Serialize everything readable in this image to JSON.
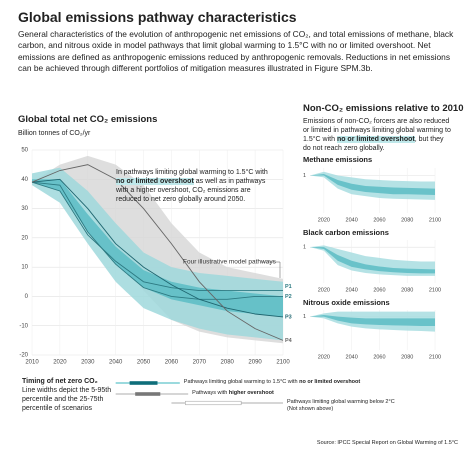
{
  "header": {
    "title": "Global emissions pathway characteristics",
    "paragraph": "General characteristics of the evolution of anthropogenic net emissions of CO₂, and total emissions of methane, black carbon, and nitrous oxide in model pathways that limit global warming to 1.5°C with no or limited overshoot. Net emissions are defined as anthropogenic emissions reduced by anthropogenic removals. Reductions in net emissions can be achieved through different portfolios of mitigation measures illustrated in Figure SPM.3b."
  },
  "chart_data": [
    {
      "type": "area-line",
      "title": "Global total net CO₂ emissions",
      "y_label": "Billion tonnes of CO₂/yr",
      "annotation": {
        "before": "In pathways limiting global warming to 1.5°C with",
        "highlight": "no or limited overshoot",
        "after": "as well as in pathways with a higher overshoot, CO₂ emissions are reduced to net zero globally around 2050."
      },
      "pathways_label": "Four illustrative model pathways",
      "x": [
        2010,
        2020,
        2030,
        2040,
        2050,
        2060,
        2070,
        2080,
        2090,
        2100
      ],
      "xlim": [
        2010,
        2100
      ],
      "xticks": [
        2010,
        2020,
        2030,
        2040,
        2050,
        2060,
        2070,
        2080,
        2090,
        2100
      ],
      "ylim": [
        -20,
        50
      ],
      "yticks": [
        -20,
        -10,
        0,
        10,
        20,
        30,
        40,
        50
      ],
      "grid": true,
      "bands": [
        {
          "color": "#d6d6d6",
          "low": [
            39,
            40,
            30,
            15,
            2,
            -8,
            -12,
            -14,
            -15,
            -16
          ],
          "high": [
            39,
            45,
            48,
            45,
            38,
            25,
            15,
            10,
            8,
            6
          ]
        },
        {
          "color": "#9fd8dc",
          "low": [
            38,
            32,
            18,
            5,
            -4,
            -8,
            -11,
            -13,
            -14,
            -15
          ],
          "high": [
            42,
            44,
            36,
            25,
            15,
            10,
            8,
            7,
            6,
            5
          ]
        },
        {
          "color": "#5bbcc4",
          "low": [
            39,
            36,
            22,
            11,
            3,
            -1,
            -3,
            -5,
            -6,
            -7
          ],
          "high": [
            40,
            40,
            28,
            17,
            9,
            5,
            3,
            2,
            1,
            0
          ]
        }
      ],
      "series": [
        {
          "name": "P1",
          "color": "#2d7a82",
          "values": [
            39,
            36,
            21,
            12,
            5,
            3,
            2,
            2,
            2,
            2
          ]
        },
        {
          "name": "P2",
          "color": "#2d7a82",
          "values": [
            39,
            38,
            22,
            11,
            3,
            0,
            -1,
            -1,
            0,
            0
          ]
        },
        {
          "name": "P3",
          "color": "#1f6670",
          "values": [
            39,
            40,
            30,
            18,
            10,
            4,
            -1,
            -4,
            -6,
            -7
          ]
        },
        {
          "name": "P4",
          "color": "#666666",
          "values": [
            39,
            43,
            45,
            40,
            30,
            18,
            5,
            -5,
            -11,
            -15
          ]
        }
      ]
    },
    {
      "type": "area",
      "title": "Methane emissions",
      "x": [
        2010,
        2020,
        2030,
        2040,
        2050,
        2060,
        2070,
        2080,
        2090,
        2100
      ],
      "xlim": [
        2010,
        2100
      ],
      "xticks": [
        2020,
        2040,
        2060,
        2080,
        2100
      ],
      "ylim": [
        0,
        1.2
      ],
      "yticks": [
        1
      ],
      "grid": true,
      "bands": [
        {
          "color": "#a8dde0",
          "low": [
            1,
            0.95,
            0.65,
            0.5,
            0.45,
            0.4,
            0.38,
            0.37,
            0.36,
            0.35
          ],
          "high": [
            1,
            1.1,
            1.0,
            0.95,
            0.9,
            0.88,
            0.86,
            0.85,
            0.84,
            0.84
          ]
        },
        {
          "color": "#5cbcc4",
          "low": [
            1,
            1.0,
            0.75,
            0.62,
            0.56,
            0.53,
            0.5,
            0.5,
            0.49,
            0.48
          ],
          "high": [
            1,
            1.04,
            0.88,
            0.78,
            0.72,
            0.7,
            0.68,
            0.67,
            0.66,
            0.65
          ]
        }
      ]
    },
    {
      "type": "area",
      "title": "Black carbon emissions",
      "x": [
        2010,
        2020,
        2030,
        2040,
        2050,
        2060,
        2070,
        2080,
        2090,
        2100
      ],
      "xlim": [
        2010,
        2100
      ],
      "xticks": [
        2020,
        2040,
        2060,
        2080,
        2100
      ],
      "ylim": [
        0,
        1.2
      ],
      "yticks": [
        1
      ],
      "grid": true,
      "bands": [
        {
          "color": "#a8dde0",
          "low": [
            1,
            0.9,
            0.5,
            0.35,
            0.28,
            0.24,
            0.22,
            0.2,
            0.2,
            0.2
          ],
          "high": [
            1,
            1.05,
            0.95,
            0.85,
            0.75,
            0.7,
            0.65,
            0.62,
            0.6,
            0.6
          ]
        },
        {
          "color": "#5cbcc4",
          "low": [
            1,
            0.95,
            0.62,
            0.45,
            0.38,
            0.33,
            0.3,
            0.28,
            0.27,
            0.27
          ],
          "high": [
            1,
            1.0,
            0.78,
            0.62,
            0.52,
            0.46,
            0.42,
            0.4,
            0.39,
            0.38
          ]
        }
      ]
    },
    {
      "type": "area",
      "title": "Nitrous oxide emissions",
      "x": [
        2010,
        2020,
        2030,
        2040,
        2050,
        2060,
        2070,
        2080,
        2090,
        2100
      ],
      "xlim": [
        2010,
        2100
      ],
      "xticks": [
        2020,
        2040,
        2060,
        2080,
        2100
      ],
      "ylim": [
        0,
        1.2
      ],
      "yticks": [
        1
      ],
      "grid": true,
      "bands": [
        {
          "color": "#a8dde0",
          "low": [
            1,
            0.95,
            0.8,
            0.7,
            0.65,
            0.62,
            0.6,
            0.58,
            0.57,
            0.55
          ],
          "high": [
            1,
            1.1,
            1.15,
            1.15,
            1.15,
            1.15,
            1.15,
            1.15,
            1.15,
            1.15
          ]
        },
        {
          "color": "#5cbcc4",
          "low": [
            1,
            1.0,
            0.88,
            0.8,
            0.77,
            0.75,
            0.74,
            0.73,
            0.72,
            0.72
          ],
          "high": [
            1,
            1.05,
            1.0,
            0.97,
            0.95,
            0.95,
            0.95,
            0.95,
            0.95,
            0.95
          ]
        }
      ]
    }
  ],
  "non_co2": {
    "title": "Non-CO₂ emissions relative to 2010",
    "paragraph": {
      "before": "Emissions of non-CO₂ forcers are also reduced or limited in pathways limiting global warming to 1.5°C with",
      "highlight": "no or limited overshoot",
      "after": ", but they do not reach zero globally."
    }
  },
  "timing": {
    "title": "Timing of net zero CO₂",
    "note": "Line widths depict the 5-95th percentile and the 25-75th percentile of scenarios",
    "rows": [
      {
        "label": "Pathways limiting global warming to 1.5°C with",
        "bold": "no or limited overshoot",
        "outer": [
          2040,
          2063
        ],
        "inner": [
          2045,
          2055
        ],
        "outer_color": "#5fc3c9",
        "inner_color": "#0e6e7a"
      },
      {
        "label": "Pathways with",
        "bold": "higher overshoot",
        "outer": [
          2040,
          2066
        ],
        "inner": [
          2047,
          2056
        ],
        "outer_color": "#bdbdbd",
        "inner_color": "#777777"
      },
      {
        "label": "Pathways limiting global warming below 2°C",
        "note": "(Not shown above)",
        "outer": [
          2060,
          2100
        ],
        "inner": [
          2065,
          2085
        ],
        "outer_color": "#bdbdbd",
        "inner_color": "#ffffff"
      }
    ]
  },
  "source": "Source: IPCC Special Report on Global Warming of 1.5°C"
}
